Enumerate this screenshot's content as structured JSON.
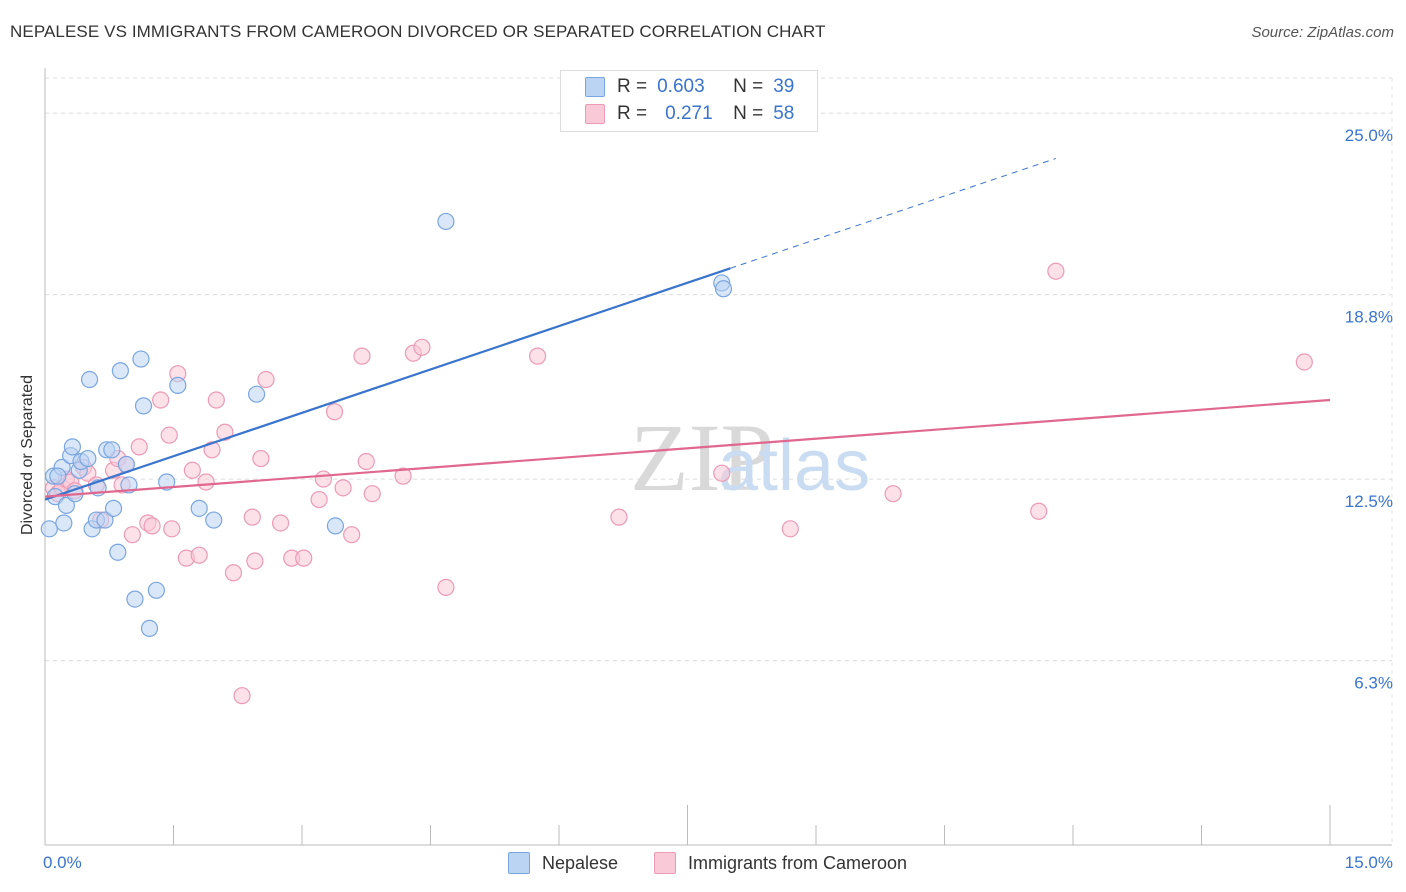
{
  "title": "NEPALESE VS IMMIGRANTS FROM CAMEROON DIVORCED OR SEPARATED CORRELATION CHART",
  "source": "Source: ZipAtlas.com",
  "watermark": {
    "zip": "ZIP",
    "atlas": "atlas"
  },
  "legend": {
    "rows": [
      {
        "r_label": "R =",
        "r_value": "0.603",
        "n_label": "N =",
        "n_value": "39",
        "color": "#a9c7f0",
        "border": "#7aa6e0"
      },
      {
        "r_label": "R =",
        "r_value": "0.271",
        "n_label": "N =",
        "n_value": "58",
        "color": "#f7bfd0",
        "border": "#ec9ab5"
      }
    ]
  },
  "bottom_legend": [
    {
      "label": "Nepalese",
      "color": "#a9c7f0"
    },
    {
      "label": "Immigrants from Cameroon",
      "color": "#f7bfd0"
    }
  ],
  "chart_data": {
    "type": "scatter",
    "title": "NEPALESE VS IMMIGRANTS FROM CAMEROON DIVORCED OR SEPARATED CORRELATION CHART",
    "xlabel": "",
    "ylabel": "Divorced or Separated",
    "xlim": [
      0,
      15
    ],
    "ylim": [
      0,
      26.2
    ],
    "x_tick_labels": [
      "0.0%",
      "15.0%"
    ],
    "y_ticks": [
      6.3,
      12.5,
      18.8,
      25.0
    ],
    "y_tick_labels": [
      "6.3%",
      "12.5%",
      "18.8%",
      "25.0%"
    ],
    "grid": true,
    "series": [
      {
        "name": "Nepalese",
        "color": "#7aa6e0",
        "fill": "#bcd4f4",
        "trend_color": "#3a74cc",
        "trend": {
          "x0": 0.0,
          "y0": 11.8,
          "x1": 8.0,
          "y1": 19.7,
          "dash_to_x": 11.8
        },
        "points": [
          [
            0.05,
            10.8
          ],
          [
            0.1,
            12.6
          ],
          [
            0.12,
            11.9
          ],
          [
            0.2,
            12.9
          ],
          [
            0.22,
            11.0
          ],
          [
            0.25,
            11.6
          ],
          [
            0.3,
            13.3
          ],
          [
            0.32,
            13.6
          ],
          [
            0.35,
            12.0
          ],
          [
            0.4,
            12.8
          ],
          [
            0.42,
            13.1
          ],
          [
            0.5,
            13.2
          ],
          [
            0.52,
            15.9
          ],
          [
            0.55,
            10.8
          ],
          [
            0.6,
            11.1
          ],
          [
            0.62,
            12.2
          ],
          [
            0.7,
            11.1
          ],
          [
            0.72,
            13.5
          ],
          [
            0.78,
            13.5
          ],
          [
            0.8,
            11.5
          ],
          [
            0.85,
            10.0
          ],
          [
            0.88,
            16.2
          ],
          [
            0.95,
            13.0
          ],
          [
            0.98,
            12.3
          ],
          [
            1.05,
            8.4
          ],
          [
            1.12,
            16.6
          ],
          [
            1.15,
            15.0
          ],
          [
            1.22,
            7.4
          ],
          [
            1.3,
            8.7
          ],
          [
            1.42,
            12.4
          ],
          [
            1.55,
            15.7
          ],
          [
            1.8,
            11.5
          ],
          [
            1.97,
            11.1
          ],
          [
            2.47,
            15.4
          ],
          [
            3.39,
            10.9
          ],
          [
            4.68,
            21.3
          ],
          [
            7.9,
            19.2
          ],
          [
            7.92,
            19.0
          ],
          [
            0.15,
            12.6
          ]
        ]
      },
      {
        "name": "Immigrants from Cameroon",
        "color": "#ec9ab5",
        "fill": "#f9c9d7",
        "trend_color": "#e0688f",
        "trend": {
          "x0": 0.0,
          "y0": 11.9,
          "x1": 15.0,
          "y1": 15.2
        },
        "points": [
          [
            0.1,
            12.2
          ],
          [
            0.15,
            12.0
          ],
          [
            0.2,
            12.2
          ],
          [
            0.25,
            12.5
          ],
          [
            0.3,
            12.4
          ],
          [
            0.35,
            12.1
          ],
          [
            0.45,
            12.9
          ],
          [
            0.5,
            12.7
          ],
          [
            0.6,
            12.3
          ],
          [
            0.65,
            11.1
          ],
          [
            0.8,
            12.8
          ],
          [
            0.85,
            13.2
          ],
          [
            0.9,
            12.3
          ],
          [
            0.95,
            13.0
          ],
          [
            1.02,
            10.6
          ],
          [
            1.1,
            13.6
          ],
          [
            1.2,
            11.0
          ],
          [
            1.25,
            10.9
          ],
          [
            1.35,
            15.2
          ],
          [
            1.45,
            14.0
          ],
          [
            1.48,
            10.8
          ],
          [
            1.55,
            16.1
          ],
          [
            1.65,
            9.8
          ],
          [
            1.72,
            12.8
          ],
          [
            1.8,
            9.9
          ],
          [
            1.88,
            12.4
          ],
          [
            1.95,
            13.5
          ],
          [
            2.0,
            15.2
          ],
          [
            2.1,
            14.1
          ],
          [
            2.2,
            9.3
          ],
          [
            2.3,
            5.1
          ],
          [
            2.42,
            11.2
          ],
          [
            2.45,
            9.7
          ],
          [
            2.52,
            13.2
          ],
          [
            2.58,
            15.9
          ],
          [
            2.75,
            11.0
          ],
          [
            2.88,
            9.8
          ],
          [
            3.02,
            9.8
          ],
          [
            3.2,
            11.8
          ],
          [
            3.25,
            12.5
          ],
          [
            3.38,
            14.8
          ],
          [
            3.48,
            12.2
          ],
          [
            3.58,
            10.6
          ],
          [
            3.7,
            16.7
          ],
          [
            3.75,
            13.1
          ],
          [
            3.82,
            12.0
          ],
          [
            4.18,
            12.6
          ],
          [
            4.3,
            16.8
          ],
          [
            4.4,
            17.0
          ],
          [
            4.68,
            8.8
          ],
          [
            5.75,
            16.7
          ],
          [
            6.7,
            11.2
          ],
          [
            7.9,
            12.7
          ],
          [
            8.7,
            10.8
          ],
          [
            9.9,
            12.0
          ],
          [
            11.6,
            11.4
          ],
          [
            11.8,
            19.6
          ],
          [
            14.7,
            16.5
          ]
        ]
      }
    ]
  }
}
